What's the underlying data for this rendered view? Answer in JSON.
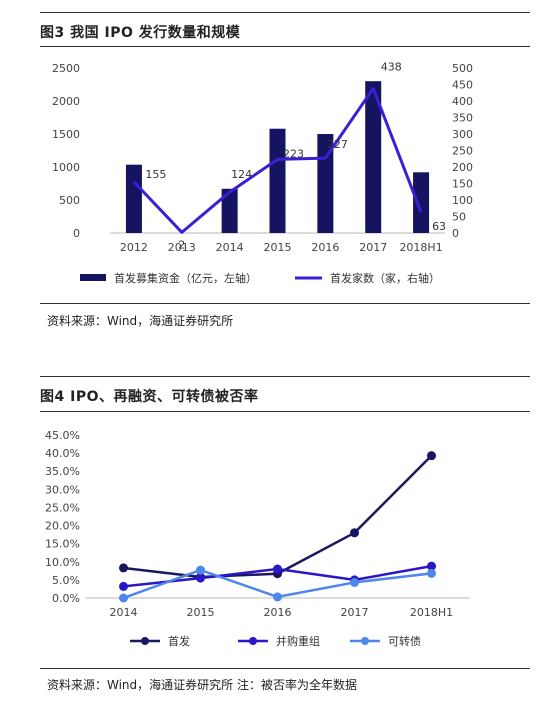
{
  "fig3": {
    "title": "图3 我国 IPO 发行数量和规模",
    "source": "资料来源：Wind，海通证券研究所"
  },
  "fig4": {
    "title": "图4 IPO、再融资、可转债被否率",
    "source": "资料来源：Wind，海通证券研究所 注：被否率为全年数据"
  },
  "chart_data": [
    {
      "type": "bar+line",
      "title": "",
      "categories": [
        "2012",
        "2013",
        "2014",
        "2015",
        "2016",
        "2017",
        "2018H1"
      ],
      "left_axis": {
        "ticks": [
          0,
          500,
          1000,
          1500,
          2000,
          2500
        ],
        "ylim": [
          0,
          2500
        ]
      },
      "right_axis": {
        "ticks": [
          0,
          50,
          100,
          150,
          200,
          250,
          300,
          350,
          400,
          450,
          500
        ],
        "ylim": [
          0,
          500
        ]
      },
      "series": [
        {
          "name": "首发募集资金（亿元，左轴）",
          "type": "bar",
          "axis": "left",
          "color": "#141460",
          "values": [
            1035,
            0,
            670,
            1580,
            1500,
            2300,
            920
          ]
        },
        {
          "name": "首发家数（家，右轴）",
          "type": "line",
          "axis": "right",
          "color": "#3b1fd6",
          "values": [
            155,
            2,
            124,
            223,
            227,
            438,
            63
          ],
          "labels": [
            "155",
            "2",
            "124",
            "223",
            "227",
            "438",
            "63"
          ]
        }
      ]
    },
    {
      "type": "line",
      "title": "",
      "categories": [
        "2014",
        "2015",
        "2016",
        "2017",
        "2018H1"
      ],
      "y_ticks": [
        "0.0%",
        "5.0%",
        "10.0%",
        "15.0%",
        "20.0%",
        "25.0%",
        "30.0%",
        "35.0%",
        "40.0%",
        "45.0%"
      ],
      "ylim": [
        0,
        45
      ],
      "series": [
        {
          "name": "首发",
          "color": "#1a1660",
          "values": [
            8.3,
            5.8,
            6.7,
            18.0,
            39.3
          ]
        },
        {
          "name": "并购重组",
          "color": "#2b16c8",
          "values": [
            3.2,
            5.5,
            8.0,
            5.0,
            8.8
          ]
        },
        {
          "name": "可转债",
          "color": "#4f86ea",
          "values": [
            0.0,
            7.7,
            0.3,
            4.3,
            6.8
          ]
        }
      ]
    }
  ]
}
